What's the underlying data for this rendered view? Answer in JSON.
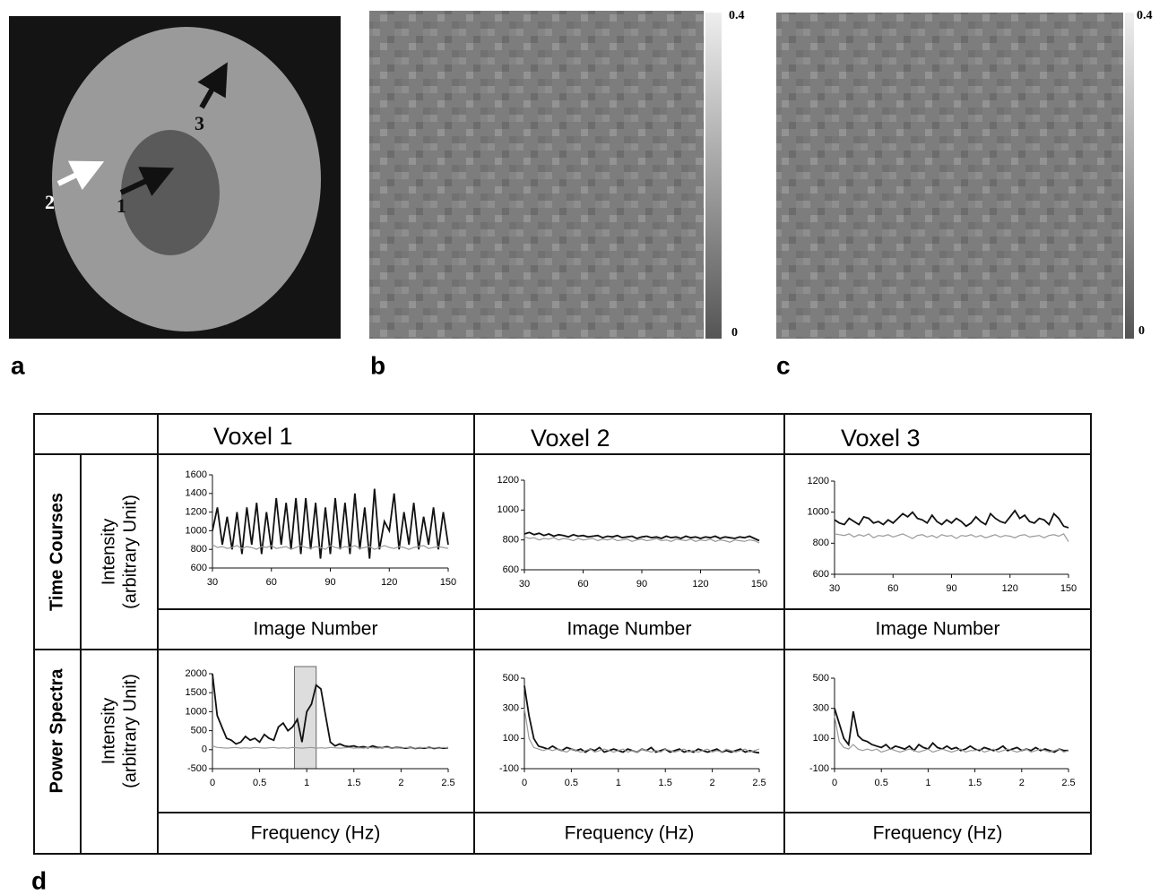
{
  "panels": {
    "labels": [
      "a",
      "b",
      "c",
      "d"
    ],
    "arrows": [
      "1",
      "2",
      "3"
    ],
    "colorbar_b": [
      "0.4",
      "0"
    ],
    "colorbar_c": [
      "0.4",
      "0"
    ]
  },
  "table": {
    "columns": [
      "Voxel 1",
      "Voxel 2",
      "Voxel 3"
    ],
    "rows": [
      {
        "label": "Time Courses",
        "ylabel": [
          "Intensity",
          "(arbitrary Unit)"
        ]
      },
      {
        "label": "Power Spectra",
        "ylabel": [
          "Intensity",
          "(arbitrary Unit)"
        ]
      }
    ]
  },
  "chart_data": [
    {
      "type": "line",
      "xlabel": "Image Number",
      "xlim": [
        30,
        150
      ],
      "xticks": [
        30,
        60,
        90,
        120,
        150
      ],
      "ylim": [
        600,
        1600
      ],
      "yticks": [
        600,
        800,
        1000,
        1200,
        1400,
        1600
      ],
      "x": [
        30,
        32.5,
        35,
        37.5,
        40,
        42.5,
        45,
        47.5,
        50,
        52.5,
        55,
        57.5,
        60,
        62.5,
        65,
        67.5,
        70,
        72.5,
        75,
        77.5,
        80,
        82.5,
        85,
        87.5,
        90,
        92.5,
        95,
        97.5,
        100,
        102.5,
        105,
        107.5,
        110,
        112.5,
        115,
        117.5,
        120,
        122.5,
        125,
        127.5,
        130,
        132.5,
        135,
        137.5,
        140,
        142.5,
        145,
        147.5,
        150
      ],
      "series": [
        {
          "color": "#111111",
          "values": [
            1000,
            1250,
            850,
            1150,
            800,
            1200,
            750,
            1250,
            850,
            1300,
            750,
            1200,
            800,
            1350,
            850,
            1300,
            800,
            1350,
            750,
            1350,
            800,
            1300,
            700,
            1250,
            750,
            1350,
            800,
            1300,
            750,
            1400,
            800,
            1250,
            700,
            1450,
            800,
            1100,
            1000,
            1400,
            800,
            1200,
            850,
            1300,
            800,
            1150,
            850,
            1250,
            800,
            1200,
            850
          ]
        },
        {
          "color": "#999999",
          "values": [
            850,
            820,
            830,
            810,
            820,
            840,
            810,
            830,
            820,
            800,
            830,
            820,
            840,
            810,
            820,
            830,
            800,
            820,
            840,
            820,
            810,
            830,
            820,
            800,
            840,
            820,
            810,
            830,
            820,
            840,
            810,
            820,
            830,
            800,
            820,
            840,
            820,
            810,
            830,
            820,
            800,
            820,
            830,
            840,
            810,
            820,
            830,
            820,
            810
          ]
        }
      ]
    },
    {
      "type": "line",
      "xlabel": "Image Number",
      "xlim": [
        30,
        150
      ],
      "xticks": [
        30,
        60,
        90,
        120,
        150
      ],
      "ylim": [
        600,
        1200
      ],
      "yticks": [
        600,
        800,
        1000,
        1200
      ],
      "x": [
        30,
        32.5,
        35,
        37.5,
        40,
        42.5,
        45,
        47.5,
        50,
        52.5,
        55,
        57.5,
        60,
        62.5,
        65,
        67.5,
        70,
        72.5,
        75,
        77.5,
        80,
        82.5,
        85,
        87.5,
        90,
        92.5,
        95,
        97.5,
        100,
        102.5,
        105,
        107.5,
        110,
        112.5,
        115,
        117.5,
        120,
        122.5,
        125,
        127.5,
        130,
        132.5,
        135,
        137.5,
        140,
        142.5,
        145,
        147.5,
        150
      ],
      "series": [
        {
          "color": "#111111",
          "values": [
            840,
            850,
            835,
            845,
            830,
            840,
            825,
            835,
            830,
            820,
            835,
            825,
            830,
            820,
            825,
            830,
            815,
            825,
            820,
            830,
            815,
            820,
            825,
            810,
            820,
            825,
            815,
            820,
            810,
            825,
            815,
            820,
            810,
            825,
            815,
            820,
            810,
            820,
            815,
            825,
            810,
            820,
            815,
            810,
            820,
            815,
            825,
            810,
            795
          ]
        },
        {
          "color": "#999999",
          "values": [
            820,
            810,
            815,
            800,
            810,
            805,
            815,
            800,
            810,
            805,
            795,
            810,
            800,
            805,
            810,
            795,
            805,
            800,
            810,
            795,
            800,
            805,
            790,
            800,
            805,
            795,
            800,
            810,
            795,
            800,
            790,
            805,
            800,
            795,
            805,
            790,
            800,
            795,
            805,
            790,
            800,
            795,
            785,
            800,
            795,
            790,
            800,
            795,
            780
          ]
        }
      ]
    },
    {
      "type": "line",
      "xlabel": "Image Number",
      "xlim": [
        30,
        150
      ],
      "xticks": [
        30,
        60,
        90,
        120,
        150
      ],
      "ylim": [
        600,
        1200
      ],
      "yticks": [
        600,
        800,
        1000,
        1200
      ],
      "x": [
        30,
        32.5,
        35,
        37.5,
        40,
        42.5,
        45,
        47.5,
        50,
        52.5,
        55,
        57.5,
        60,
        62.5,
        65,
        67.5,
        70,
        72.5,
        75,
        77.5,
        80,
        82.5,
        85,
        87.5,
        90,
        92.5,
        95,
        97.5,
        100,
        102.5,
        105,
        107.5,
        110,
        112.5,
        115,
        117.5,
        120,
        122.5,
        125,
        127.5,
        130,
        132.5,
        135,
        137.5,
        140,
        142.5,
        145,
        147.5,
        150
      ],
      "series": [
        {
          "color": "#111111",
          "values": [
            950,
            930,
            920,
            960,
            940,
            920,
            970,
            960,
            930,
            940,
            920,
            950,
            930,
            960,
            990,
            970,
            1000,
            960,
            950,
            930,
            980,
            940,
            920,
            950,
            930,
            960,
            940,
            910,
            930,
            970,
            940,
            920,
            990,
            960,
            940,
            930,
            970,
            1010,
            960,
            980,
            940,
            930,
            960,
            950,
            920,
            990,
            960,
            910,
            900
          ]
        },
        {
          "color": "#999999",
          "values": [
            860,
            855,
            850,
            860,
            840,
            855,
            845,
            860,
            835,
            850,
            845,
            855,
            840,
            850,
            860,
            845,
            830,
            850,
            855,
            840,
            850,
            835,
            855,
            845,
            850,
            830,
            850,
            845,
            855,
            840,
            850,
            835,
            845,
            855,
            840,
            850,
            845,
            835,
            850,
            855,
            840,
            845,
            850,
            835,
            850,
            855,
            845,
            860,
            810
          ]
        }
      ]
    },
    {
      "type": "line",
      "xlabel": "Frequency (Hz)",
      "xlim": [
        0,
        2.5
      ],
      "xticks": [
        0,
        0.5,
        1,
        1.5,
        2,
        2.5
      ],
      "ylim": [
        -500,
        2000
      ],
      "yticks": [
        -500,
        0,
        500,
        1000,
        1500,
        2000
      ],
      "highlight": [
        0.87,
        1.1
      ],
      "x": [
        0,
        0.05,
        0.1,
        0.15,
        0.2,
        0.25,
        0.3,
        0.35,
        0.4,
        0.45,
        0.5,
        0.55,
        0.6,
        0.65,
        0.7,
        0.75,
        0.8,
        0.85,
        0.9,
        0.95,
        1,
        1.05,
        1.1,
        1.15,
        1.2,
        1.25,
        1.3,
        1.35,
        1.4,
        1.45,
        1.5,
        1.55,
        1.6,
        1.65,
        1.7,
        1.75,
        1.8,
        1.85,
        1.9,
        1.95,
        2,
        2.05,
        2.1,
        2.15,
        2.2,
        2.25,
        2.3,
        2.35,
        2.4,
        2.45,
        2.5
      ],
      "series": [
        {
          "color": "#111111",
          "values": [
            2000,
            900,
            600,
            300,
            250,
            150,
            200,
            350,
            250,
            300,
            200,
            400,
            300,
            250,
            600,
            700,
            500,
            600,
            800,
            200,
            1000,
            1200,
            1700,
            1600,
            900,
            200,
            100,
            150,
            100,
            80,
            100,
            60,
            80,
            50,
            100,
            60,
            50,
            80,
            40,
            60,
            50,
            40,
            60,
            30,
            50,
            40,
            60,
            30,
            50,
            40,
            50
          ]
        },
        {
          "color": "#999999",
          "values": [
            100,
            60,
            50,
            40,
            50,
            60,
            40,
            50,
            40,
            60,
            50,
            40,
            50,
            60,
            40,
            50,
            40,
            60,
            50,
            40,
            50,
            60,
            40,
            50,
            40,
            60,
            50,
            40,
            50,
            60,
            40,
            50,
            40,
            60,
            50,
            40,
            50,
            60,
            40,
            50,
            40,
            60,
            50,
            40,
            50,
            60,
            40,
            50,
            40,
            60,
            50
          ]
        }
      ]
    },
    {
      "type": "line",
      "xlabel": "Frequency (Hz)",
      "xlim": [
        0,
        2.5
      ],
      "xticks": [
        0,
        0.5,
        1,
        1.5,
        2,
        2.5
      ],
      "ylim": [
        -100,
        500
      ],
      "yticks": [
        -100,
        100,
        300,
        500
      ],
      "x": [
        0,
        0.05,
        0.1,
        0.15,
        0.2,
        0.25,
        0.3,
        0.35,
        0.4,
        0.45,
        0.5,
        0.55,
        0.6,
        0.65,
        0.7,
        0.75,
        0.8,
        0.85,
        0.9,
        0.95,
        1,
        1.05,
        1.1,
        1.15,
        1.2,
        1.25,
        1.3,
        1.35,
        1.4,
        1.45,
        1.5,
        1.55,
        1.6,
        1.65,
        1.7,
        1.75,
        1.8,
        1.85,
        1.9,
        1.95,
        2,
        2.05,
        2.1,
        2.15,
        2.2,
        2.25,
        2.3,
        2.35,
        2.4,
        2.45,
        2.5
      ],
      "series": [
        {
          "color": "#111111",
          "values": [
            450,
            250,
            100,
            50,
            40,
            30,
            50,
            30,
            20,
            40,
            30,
            20,
            30,
            10,
            30,
            20,
            40,
            10,
            20,
            30,
            20,
            10,
            30,
            20,
            10,
            30,
            20,
            40,
            10,
            20,
            30,
            10,
            20,
            30,
            10,
            20,
            10,
            30,
            20,
            10,
            20,
            30,
            10,
            20,
            10,
            20,
            30,
            10,
            20,
            10,
            5
          ]
        },
        {
          "color": "#999999",
          "values": [
            300,
            100,
            40,
            30,
            20,
            30,
            20,
            30,
            20,
            10,
            30,
            20,
            10,
            20,
            30,
            10,
            20,
            30,
            20,
            10,
            20,
            30,
            10,
            20,
            10,
            30,
            20,
            10,
            20,
            10,
            30,
            20,
            10,
            20,
            30,
            10,
            20,
            10,
            20,
            30,
            10,
            20,
            10,
            30,
            20,
            10,
            20,
            30,
            10,
            20,
            30
          ]
        }
      ]
    },
    {
      "type": "line",
      "xlabel": "Frequency (Hz)",
      "xlim": [
        0,
        2.5
      ],
      "xticks": [
        0,
        0.5,
        1,
        1.5,
        2,
        2.5
      ],
      "ylim": [
        -100,
        500
      ],
      "yticks": [
        -100,
        100,
        300,
        500
      ],
      "x": [
        0,
        0.05,
        0.1,
        0.15,
        0.2,
        0.25,
        0.3,
        0.35,
        0.4,
        0.45,
        0.5,
        0.55,
        0.6,
        0.65,
        0.7,
        0.75,
        0.8,
        0.85,
        0.9,
        0.95,
        1,
        1.05,
        1.1,
        1.15,
        1.2,
        1.25,
        1.3,
        1.35,
        1.4,
        1.45,
        1.5,
        1.55,
        1.6,
        1.65,
        1.7,
        1.75,
        1.8,
        1.85,
        1.9,
        1.95,
        2,
        2.05,
        2.1,
        2.15,
        2.2,
        2.25,
        2.3,
        2.35,
        2.4,
        2.45,
        2.5
      ],
      "series": [
        {
          "color": "#111111",
          "values": [
            300,
            200,
            100,
            60,
            280,
            120,
            90,
            80,
            60,
            50,
            40,
            60,
            30,
            50,
            40,
            30,
            50,
            20,
            60,
            40,
            30,
            70,
            40,
            30,
            50,
            30,
            40,
            20,
            30,
            50,
            30,
            20,
            40,
            30,
            20,
            30,
            50,
            20,
            30,
            40,
            20,
            30,
            20,
            40,
            20,
            30,
            20,
            10,
            30,
            20,
            20
          ]
        },
        {
          "color": "#999999",
          "values": [
            250,
            80,
            40,
            30,
            60,
            30,
            20,
            30,
            20,
            30,
            10,
            20,
            30,
            20,
            10,
            20,
            30,
            20,
            10,
            20,
            30,
            10,
            20,
            30,
            20,
            10,
            20,
            30,
            10,
            20,
            20,
            30,
            10,
            20,
            30,
            10,
            20,
            30,
            20,
            10,
            20,
            30,
            10,
            20,
            30,
            20,
            10,
            20,
            30,
            10,
            20
          ]
        }
      ]
    }
  ]
}
